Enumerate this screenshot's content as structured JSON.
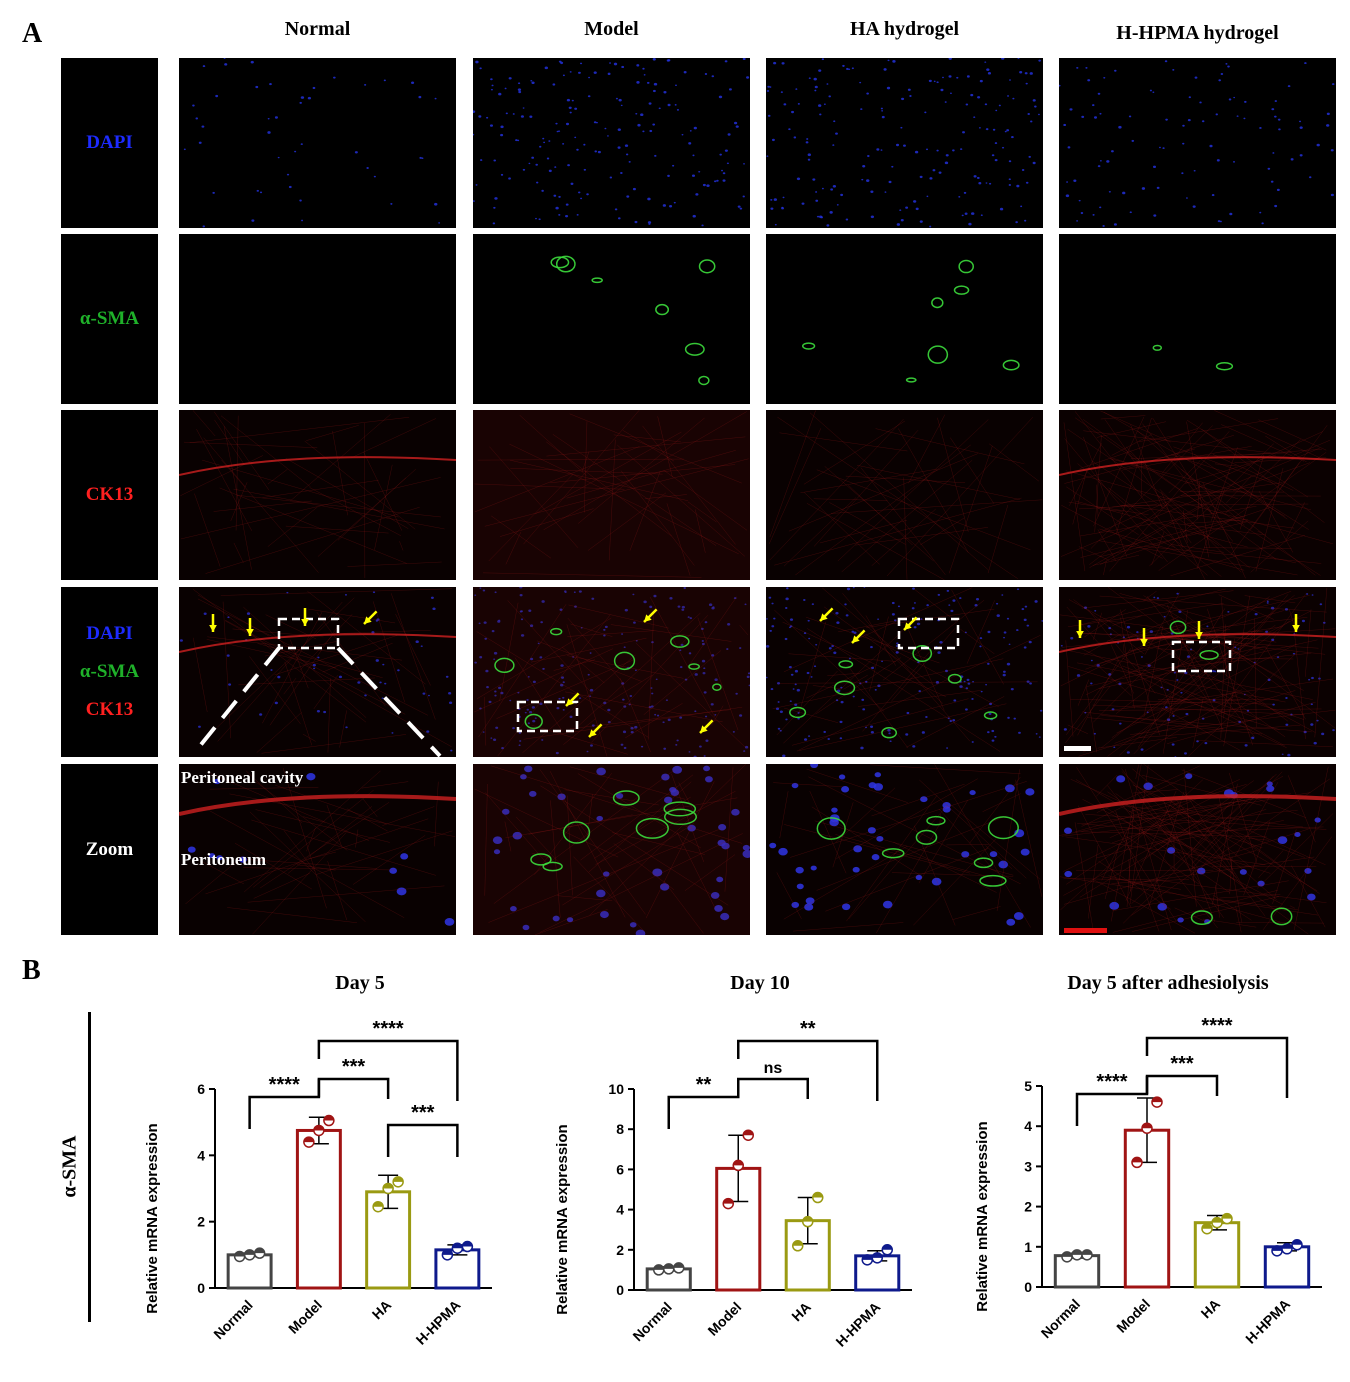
{
  "panel_a": {
    "letter": "A",
    "columns": [
      "Normal",
      "Model",
      "HA hydrogel",
      "H-HPMA hydrogel"
    ],
    "rows": [
      {
        "lines": [
          {
            "text": "DAPI",
            "color": "#1d2bff"
          }
        ]
      },
      {
        "lines": [
          {
            "text": "α-SMA",
            "color": "#1fb12a"
          }
        ]
      },
      {
        "lines": [
          {
            "text": "CK13",
            "color": "#ff2020"
          }
        ]
      },
      {
        "lines": [
          {
            "text": "DAPI",
            "color": "#1d2bff"
          },
          {
            "text": "α-SMA",
            "color": "#1fb12a"
          },
          {
            "text": "CK13",
            "color": "#ff2020"
          }
        ]
      },
      {
        "lines": [
          {
            "text": "Zoom",
            "color": "#ffffff"
          }
        ]
      }
    ],
    "zoom_labels": {
      "cavity": "Peritoneal cavity",
      "peritoneum": "Peritoneum"
    }
  },
  "panel_b": {
    "letter": "B",
    "side_label": "α-SMA"
  },
  "chart_data": [
    {
      "type": "bar",
      "title": "Day 5",
      "ylabel": "Relative mRNA expression",
      "categories": [
        "Normal",
        "Model",
        "HA",
        "H-HPMA"
      ],
      "values": [
        1.0,
        4.75,
        2.9,
        1.15
      ],
      "errors": [
        0.05,
        0.4,
        0.5,
        0.15
      ],
      "points": [
        [
          0.95,
          1.0,
          1.05
        ],
        [
          4.4,
          4.75,
          5.05
        ],
        [
          2.45,
          3.0,
          3.2
        ],
        [
          1.0,
          1.2,
          1.25
        ]
      ],
      "ylim": [
        0,
        6
      ],
      "yticks": [
        0,
        2,
        4,
        6
      ],
      "colors": [
        "#444444",
        "#a01414",
        "#9a9a12",
        "#0e1a8c"
      ],
      "comparisons": [
        {
          "from": 0,
          "to": 1,
          "label": "****"
        },
        {
          "from": 1,
          "to": 2,
          "label": "***"
        },
        {
          "from": 1,
          "to": 3,
          "label": "****"
        },
        {
          "from": 2,
          "to": 3,
          "label": "***"
        }
      ]
    },
    {
      "type": "bar",
      "title": "Day 10",
      "ylabel": "Relative mRNA expression",
      "categories": [
        "Normal",
        "Model",
        "HA",
        "H-HPMA"
      ],
      "values": [
        1.05,
        6.05,
        3.45,
        1.7
      ],
      "errors": [
        0.1,
        1.65,
        1.15,
        0.25
      ],
      "points": [
        [
          1.0,
          1.05,
          1.1
        ],
        [
          4.3,
          6.2,
          7.7
        ],
        [
          2.2,
          3.4,
          4.6
        ],
        [
          1.5,
          1.6,
          2.0
        ]
      ],
      "ylim": [
        0,
        10
      ],
      "yticks": [
        0,
        2,
        4,
        6,
        8,
        10
      ],
      "colors": [
        "#444444",
        "#a01414",
        "#9a9a12",
        "#0e1a8c"
      ],
      "comparisons": [
        {
          "from": 0,
          "to": 1,
          "label": "**"
        },
        {
          "from": 1,
          "to": 2,
          "label": "ns"
        },
        {
          "from": 1,
          "to": 3,
          "label": "**"
        }
      ]
    },
    {
      "type": "bar",
      "title": "Day 5 after adhesiolysis",
      "ylabel": "Relative mRNA expression",
      "categories": [
        "Normal",
        "Model",
        "HA",
        "H-HPMA"
      ],
      "values": [
        0.78,
        3.9,
        1.6,
        1.0
      ],
      "errors": [
        0.06,
        0.8,
        0.18,
        0.1
      ],
      "points": [
        [
          0.75,
          0.8,
          0.8
        ],
        [
          3.1,
          3.95,
          4.6
        ],
        [
          1.45,
          1.6,
          1.7
        ],
        [
          0.9,
          0.95,
          1.05
        ]
      ],
      "ylim": [
        0,
        5
      ],
      "yticks": [
        0,
        1,
        2,
        3,
        4,
        5
      ],
      "colors": [
        "#444444",
        "#a01414",
        "#9a9a12",
        "#0e1a8c"
      ],
      "comparisons": [
        {
          "from": 0,
          "to": 1,
          "label": "****"
        },
        {
          "from": 1,
          "to": 2,
          "label": "***"
        },
        {
          "from": 1,
          "to": 3,
          "label": "****"
        }
      ]
    }
  ]
}
